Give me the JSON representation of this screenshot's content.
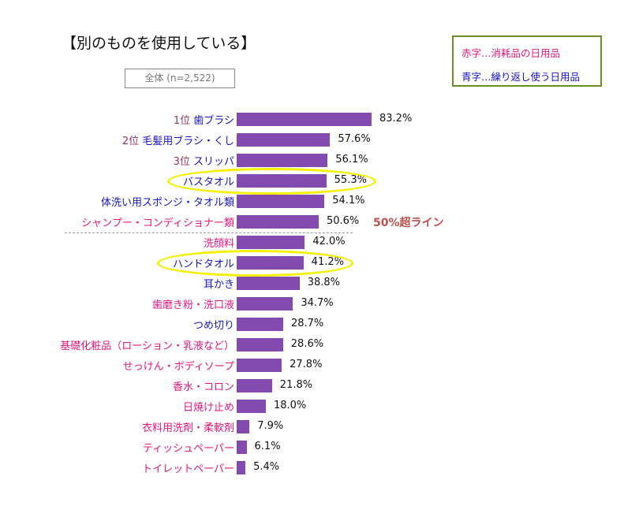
{
  "title": "【別のものを使用している】",
  "subtitle": "全体 (n=2,522)",
  "legend": {
    "red": "赤字…消耗品の日用品",
    "blue": "青字…繰り返し使う日用品"
  },
  "colors": {
    "bar": "#834bb0",
    "consumable": "#e8157d",
    "reusable": "#1414c8",
    "rank": "#993366",
    "highlight": "#f5f000",
    "threshold": "#c0504d"
  },
  "chart_data": {
    "type": "bar",
    "orientation": "horizontal",
    "unit": "%",
    "categories": [
      "歯ブラシ",
      "毛髪用ブラシ・くし",
      "スリッパ",
      "バスタオル",
      "体洗い用スポンジ・タオル類",
      "シャンプー・コンディショナー類",
      "洗顔料",
      "ハンドタオル",
      "耳かき",
      "歯磨き粉・洗口液",
      "つめ切り",
      "基礎化粧品（ローション・乳液など）",
      "せっけん・ボディソープ",
      "香水・コロン",
      "日焼け止め",
      "衣料用洗剤・柔軟剤",
      "ティッシュペーパー",
      "トイレットペーパー"
    ],
    "ranks": [
      "1位",
      "2位",
      "3位",
      "",
      "",
      "",
      "",
      "",
      "",
      "",
      "",
      "",
      "",
      "",
      "",
      "",
      "",
      ""
    ],
    "types": [
      "reusable",
      "reusable",
      "reusable",
      "reusable",
      "reusable",
      "consumable",
      "consumable",
      "reusable",
      "reusable",
      "consumable",
      "reusable",
      "consumable",
      "consumable",
      "consumable",
      "consumable",
      "consumable",
      "consumable",
      "consumable"
    ],
    "highlighted": [
      "バスタオル",
      "ハンドタオル"
    ],
    "values": [
      83.2,
      57.6,
      56.1,
      55.3,
      54.1,
      50.6,
      42.0,
      41.2,
      38.8,
      34.7,
      28.7,
      28.6,
      27.8,
      21.8,
      18.0,
      7.9,
      6.1,
      5.4
    ],
    "threshold": {
      "value": 50,
      "label": "50%超ライン"
    }
  }
}
